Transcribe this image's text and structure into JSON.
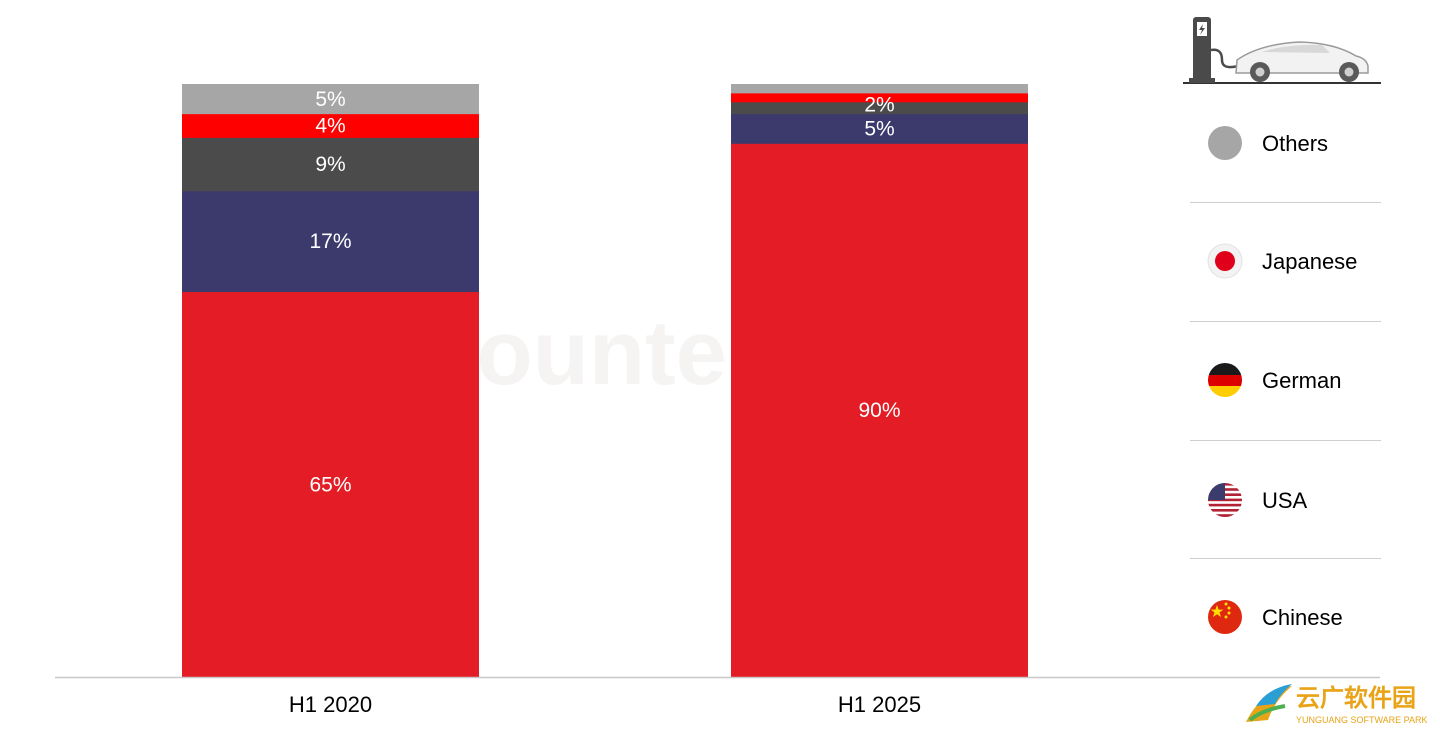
{
  "chart_data": {
    "type": "bar",
    "stacked": true,
    "categories": [
      "H1 2020",
      "H1 2025"
    ],
    "series": [
      {
        "name": "Chinese",
        "color": "#e31c25",
        "values": [
          65,
          90
        ]
      },
      {
        "name": "USA",
        "color": "#3c3a6c",
        "values": [
          17,
          5
        ]
      },
      {
        "name": "German",
        "color": "#4b4b4b",
        "values": [
          9,
          2
        ]
      },
      {
        "name": "Japanese",
        "color": "#ff0000",
        "values": [
          4,
          1.5
        ]
      },
      {
        "name": "Others",
        "color": "#a6a6a6",
        "values": [
          5,
          1.5
        ]
      }
    ],
    "data_labels": [
      [
        "65%",
        "17%",
        "9%",
        "4%",
        "5%"
      ],
      [
        "90%",
        "5%",
        "2%",
        "",
        ""
      ]
    ],
    "ylim": [
      0,
      100
    ],
    "legend": {
      "placement": "right",
      "order": [
        "Others",
        "Japanese",
        "German",
        "USA",
        "Chinese"
      ],
      "icons": [
        "grey-dot-icon",
        "japan-flag-icon",
        "germany-flag-icon",
        "usa-flag-icon",
        "china-flag-icon"
      ]
    },
    "title": "",
    "xlabel": "",
    "ylabel": ""
  },
  "watermark": {
    "text": "Counterpoint"
  },
  "brand_logo": {
    "chinese": "云广软件园",
    "english": "YUNGUANG SOFTWARE PARK"
  },
  "header_icon": "ev-charging-car-icon"
}
